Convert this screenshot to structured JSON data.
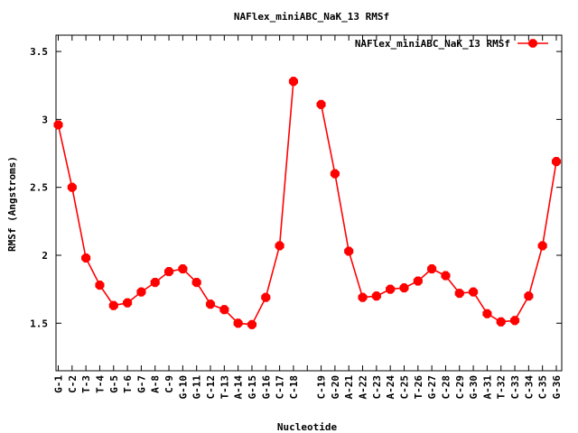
{
  "chart_data": {
    "type": "line",
    "title": "NAFlex_miniABC_NaK_13 RMSf",
    "xlabel": "Nucleotide",
    "ylabel": "RMSf (Angstroms)",
    "ylim": [
      1.15,
      3.62
    ],
    "yticks": [
      1.5,
      2,
      2.5,
      3,
      3.5
    ],
    "ytick_labels": [
      "1.5",
      "2",
      "2.5",
      "3",
      "3.5"
    ],
    "legend_position": "top-right",
    "grid": false,
    "line_color": "#ff0000",
    "categories": [
      "G-1",
      "C-2",
      "T-3",
      "T-4",
      "G-5",
      "T-6",
      "G-7",
      "A-8",
      "C-9",
      "G-10",
      "G-11",
      "C-12",
      "T-13",
      "A-14",
      "G-15",
      "G-16",
      "C-17",
      "C-18",
      "",
      "C-19",
      "G-20",
      "A-21",
      "A-22",
      "C-23",
      "A-24",
      "C-25",
      "T-26",
      "G-27",
      "C-28",
      "C-29",
      "G-30",
      "A-31",
      "T-32",
      "C-33",
      "C-34",
      "C-35",
      "G-36"
    ],
    "series": [
      {
        "name": "NAFlex_miniABC_NaK_13 RMSf",
        "values": [
          2.96,
          2.5,
          1.98,
          1.78,
          1.63,
          1.65,
          1.73,
          1.8,
          1.88,
          1.9,
          1.8,
          1.64,
          1.6,
          1.5,
          1.49,
          1.69,
          2.07,
          3.28,
          null,
          3.11,
          2.6,
          2.03,
          1.69,
          1.7,
          1.75,
          1.76,
          1.81,
          1.9,
          1.85,
          1.72,
          1.73,
          1.57,
          1.51,
          1.52,
          1.7,
          2.07,
          2.69
        ]
      }
    ]
  }
}
